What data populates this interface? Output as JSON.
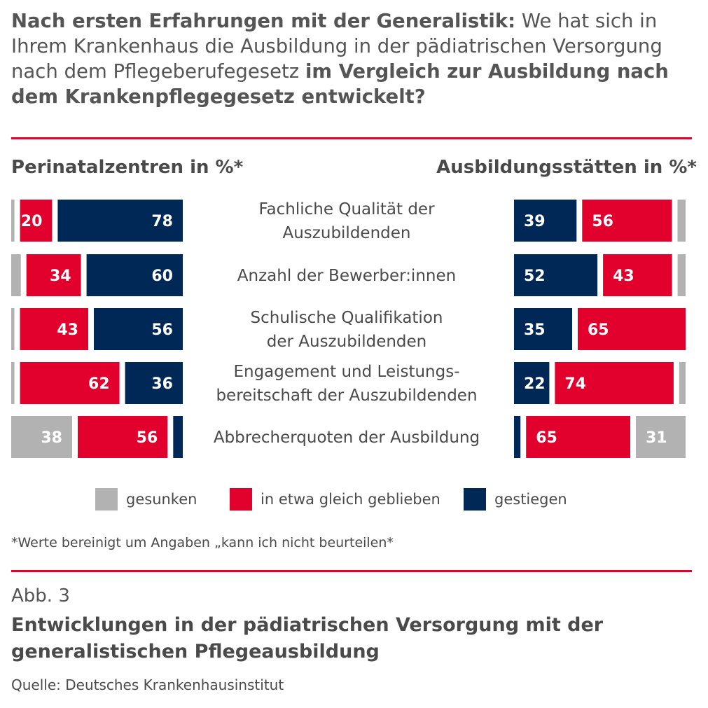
{
  "title": {
    "bold1": "Nach ersten Erfahrungen mit der Generalistik:",
    "normal1": " We hat sich in Ihrem Krankenhaus die Ausbildung in der pädiatrischen Versorgung nach dem Pflegeberufegesetz ",
    "bold2": "im Vergleich zur Ausbildung nach dem Krankenpflegegesetz entwickelt?"
  },
  "left_header": "Perinatalzentren in %*",
  "right_header": "Ausbildungsstätten in %*",
  "colors": {
    "gesunken": "#b2b2b2",
    "gleich": "#e2002d",
    "gestiegen": "#002857",
    "accent": "#e2002d"
  },
  "chart_data": {
    "type": "bar",
    "orientation": "horizontal-stacked",
    "categories": [
      [
        "Fachliche Qualität der",
        "Auszubildenden"
      ],
      [
        "Anzahl der Bewerber:innen"
      ],
      [
        "Schulische Qualifikation",
        "der Auszubildenden"
      ],
      [
        "Engagement und Leistungs-",
        "bereitschaft der Auszubildenden"
      ],
      [
        "Abbrecherquoten der Ausbildung"
      ]
    ],
    "series_names": [
      "gesunken",
      "in etwa gleich geblieben",
      "gestiegen"
    ],
    "perinatalzentren": {
      "gesunken": [
        2,
        6,
        2,
        2,
        38
      ],
      "gleich": [
        20,
        34,
        43,
        62,
        56
      ],
      "gestiegen": [
        78,
        60,
        56,
        36,
        6
      ]
    },
    "ausbildungsstaetten": {
      "gesunken": [
        5,
        5,
        0,
        4,
        31
      ],
      "gleich": [
        56,
        43,
        65,
        74,
        65
      ],
      "gestiegen": [
        39,
        52,
        35,
        22,
        4
      ]
    },
    "labels_shown_perinatal": {
      "gesunken": [
        "",
        "",
        "",
        "",
        "38"
      ],
      "gleich": [
        "20",
        "34",
        "43",
        "62",
        "56"
      ],
      "gestiegen": [
        "78",
        "60",
        "56",
        "36",
        ""
      ]
    },
    "labels_shown_ausbildung": {
      "gesunken": [
        "",
        "",
        "",
        "",
        "31"
      ],
      "gleich": [
        "56",
        "43",
        "65",
        "74",
        "65"
      ],
      "gestiegen": [
        "39",
        "52",
        "35",
        "22",
        ""
      ]
    },
    "unit": "%"
  },
  "legend": {
    "gesunken": "gesunken",
    "gleich": "in etwa gleich geblieben",
    "gestiegen": "gestiegen"
  },
  "footnote": "*Werte bereinigt um Angaben „kann ich nicht beurteilen*",
  "figure_number": "Abb. 3",
  "subtitle": "Entwicklungen in der pädiatrischen Versorgung mit der generalistischen Pflegeausbildung",
  "source": "Quelle: Deutsches Krankenhausinstitut"
}
